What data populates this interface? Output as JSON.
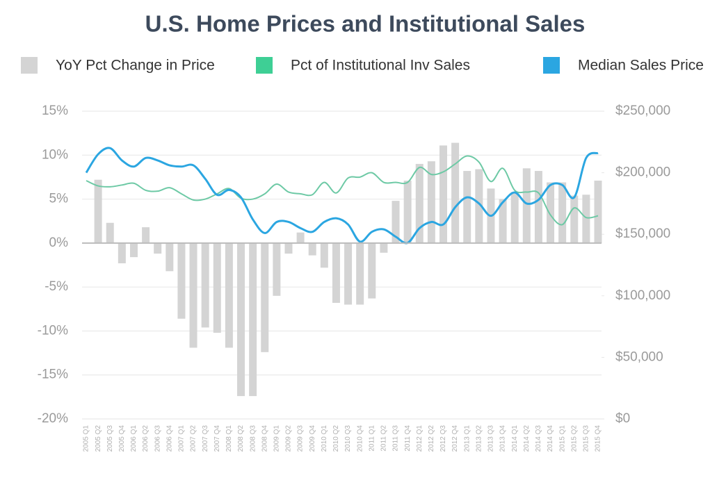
{
  "chart_data": {
    "type": "combo",
    "title": "U.S. Home Prices and Institutional Sales",
    "categories": [
      "2005 Q1",
      "2005 Q2",
      "2005 Q3",
      "2005 Q4",
      "2006 Q1",
      "2006 Q2",
      "2006 Q3",
      "2006 Q4",
      "2007 Q1",
      "2007 Q2",
      "2007 Q3",
      "2007 Q4",
      "2008 Q1",
      "2008 Q2",
      "2008 Q3",
      "2008 Q4",
      "2009 Q1",
      "2009 Q2",
      "2009 Q3",
      "2009 Q4",
      "2010 Q1",
      "2010 Q2",
      "2010 Q3",
      "2010 Q4",
      "2011 Q1",
      "2011 Q2",
      "2011 Q3",
      "2011 Q4",
      "2012 Q1",
      "2012 Q2",
      "2012 Q3",
      "2012 Q4",
      "2013 Q1",
      "2013 Q2",
      "2013 Q3",
      "2013 Q4",
      "2014 Q1",
      "2014 Q2",
      "2014 Q3",
      "2014 Q4",
      "2015 Q1",
      "2015 Q2",
      "2015 Q3",
      "2015 Q4"
    ],
    "series": [
      {
        "name": "YoY Pct Change in Price",
        "kind": "bar",
        "color": "#d4d4d4",
        "values": [
          null,
          7.2,
          2.3,
          -2.3,
          -1.6,
          1.8,
          -1.2,
          -3.2,
          -8.6,
          -11.9,
          -9.6,
          -10.2,
          -11.9,
          -17.4,
          -17.4,
          -12.4,
          -6,
          -1.2,
          1.2,
          -1.4,
          -2.8,
          -6.8,
          -7,
          -7,
          -6.3,
          -1.1,
          4.8,
          7.1,
          9,
          9.3,
          11.1,
          11.4,
          8.2,
          8.4,
          6.2,
          5,
          5.8,
          8.5,
          8.2,
          6.9,
          6.9,
          5.4,
          5.5,
          7.1
        ]
      },
      {
        "name": "Pct of Institutional Inv Sales",
        "kind": "line",
        "color": "#6dc9a5",
        "legend_color": "#3ecf95",
        "values": [
          7.1,
          6.5,
          6.4,
          6.6,
          6.8,
          6.0,
          5.9,
          6.3,
          5.6,
          4.9,
          5.0,
          5.6,
          6.2,
          5.1,
          5.0,
          5.6,
          6.7,
          5.8,
          5.6,
          5.5,
          6.9,
          5.7,
          7.4,
          7.5,
          8.0,
          6.9,
          6.9,
          6.9,
          8.6,
          7.8,
          8.1,
          9.0,
          9.9,
          9.2,
          7.0,
          8.5,
          6.0,
          5.8,
          5.7,
          3.2,
          2.1,
          4.0,
          2.9,
          3.1
        ]
      },
      {
        "name": "Median Sales Price",
        "kind": "line",
        "axis": "y2",
        "color": "#2ba6e1",
        "values": [
          200000,
          215000,
          220000,
          210000,
          205000,
          212000,
          210000,
          206000,
          205000,
          206000,
          195000,
          182000,
          186000,
          180000,
          162000,
          151000,
          160000,
          160000,
          155000,
          152000,
          160000,
          163000,
          158000,
          144000,
          152000,
          154000,
          148000,
          143000,
          155000,
          160000,
          158000,
          172000,
          180000,
          175000,
          165000,
          176000,
          184000,
          175000,
          178000,
          190000,
          190000,
          180000,
          212000,
          216000
        ]
      }
    ],
    "ylim": [
      -20,
      15
    ],
    "yticks": [
      {
        "value": -20,
        "label": "-20%"
      },
      {
        "value": -15,
        "label": "-15%"
      },
      {
        "value": -10,
        "label": "-10%"
      },
      {
        "value": -5,
        "label": "-5%"
      },
      {
        "value": 0,
        "label": "0%"
      },
      {
        "value": 5,
        "label": "5%"
      },
      {
        "value": 10,
        "label": "10%"
      },
      {
        "value": 15,
        "label": "15%"
      }
    ],
    "y2lim": [
      0,
      250000
    ],
    "y2ticks": [
      {
        "value": 0,
        "label": "$0"
      },
      {
        "value": 50000,
        "label": "$50,000"
      },
      {
        "value": 100000,
        "label": "$100,000"
      },
      {
        "value": 150000,
        "label": "$150,000"
      },
      {
        "value": 200000,
        "label": "$200,000"
      },
      {
        "value": 250000,
        "label": "$250,000"
      }
    ],
    "grid": true
  }
}
